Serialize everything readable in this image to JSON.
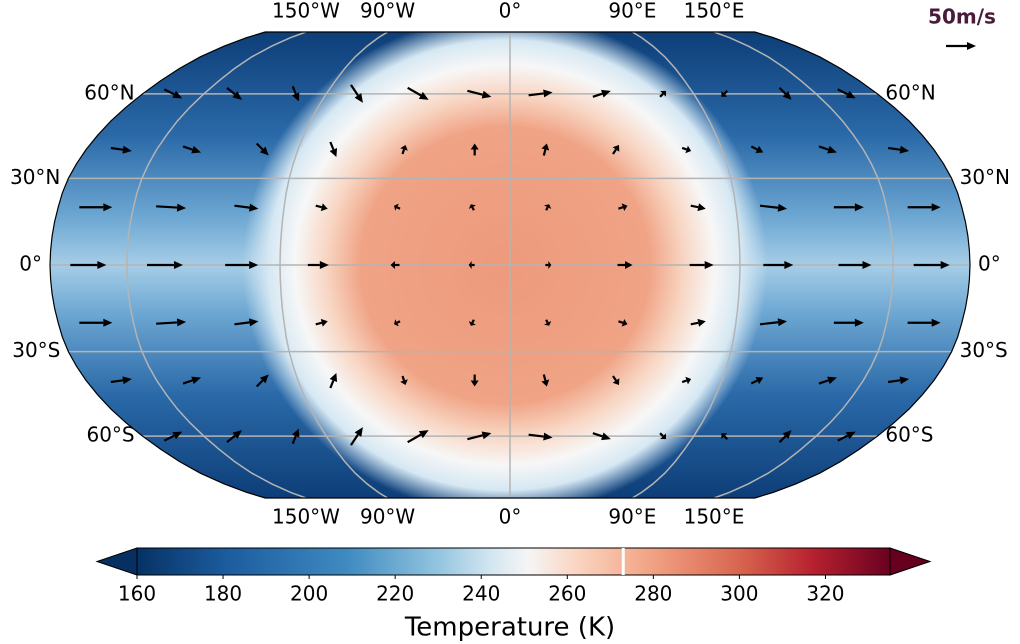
{
  "map": {
    "projection": "robinson",
    "xticks": [
      {
        "value": -150,
        "label": "150°W"
      },
      {
        "value": -90,
        "label": "90°W"
      },
      {
        "value": 0,
        "label": "0°"
      },
      {
        "value": 90,
        "label": "90°E"
      },
      {
        "value": 150,
        "label": "150°E"
      }
    ],
    "yticks": [
      {
        "value": 60,
        "label": "60°N"
      },
      {
        "value": 30,
        "label": "30°N"
      },
      {
        "value": 0,
        "label": "0°"
      },
      {
        "value": -30,
        "label": "30°S"
      },
      {
        "value": -60,
        "label": "60°S"
      }
    ],
    "wind": {
      "reference": {
        "value": 50,
        "label": "50m/s"
      },
      "lats": [
        60,
        40,
        20,
        0,
        -20,
        -40,
        -60
      ],
      "lons": [
        -165,
        -135,
        -105,
        -75,
        -45,
        -15,
        15,
        45,
        75,
        105,
        135,
        165
      ],
      "u": [
        [
          30,
          25,
          10,
          20,
          35,
          40,
          40,
          30,
          10,
          -10,
          20,
          30
        ],
        [
          35,
          30,
          20,
          10,
          5,
          0,
          5,
          10,
          15,
          20,
          30,
          35
        ],
        [
          55,
          50,
          40,
          20,
          -10,
          -5,
          5,
          15,
          25,
          45,
          50,
          55
        ],
        [
          60,
          60,
          55,
          35,
          -15,
          -10,
          10,
          25,
          40,
          50,
          55,
          60
        ],
        [
          55,
          50,
          40,
          20,
          -10,
          -5,
          5,
          15,
          25,
          45,
          50,
          55
        ],
        [
          35,
          30,
          20,
          10,
          5,
          0,
          5,
          10,
          15,
          20,
          30,
          35
        ],
        [
          30,
          25,
          10,
          20,
          35,
          40,
          40,
          30,
          10,
          -10,
          20,
          30
        ]
      ],
      "v": [
        [
          -15,
          -20,
          -25,
          -30,
          -20,
          -10,
          5,
          10,
          10,
          -10,
          -20,
          -15
        ],
        [
          -5,
          -10,
          -20,
          -25,
          15,
          20,
          20,
          15,
          -5,
          -10,
          -10,
          -5
        ],
        [
          0,
          -3,
          -5,
          -5,
          5,
          10,
          10,
          5,
          -5,
          -5,
          0,
          0
        ],
        [
          0,
          0,
          0,
          0,
          0,
          0,
          0,
          0,
          0,
          0,
          0,
          0
        ],
        [
          0,
          3,
          5,
          5,
          -5,
          -10,
          -10,
          -5,
          5,
          5,
          0,
          0
        ],
        [
          5,
          10,
          20,
          25,
          -15,
          -20,
          -20,
          -15,
          5,
          10,
          10,
          5
        ],
        [
          15,
          20,
          25,
          30,
          20,
          10,
          -5,
          -10,
          -10,
          10,
          20,
          15
        ]
      ]
    }
  },
  "colorbar": {
    "label": "Temperature (K)",
    "lim": [
      160,
      335
    ],
    "ticks": [
      160,
      180,
      200,
      220,
      240,
      260,
      280,
      300,
      320
    ],
    "contour_level": 273
  }
}
